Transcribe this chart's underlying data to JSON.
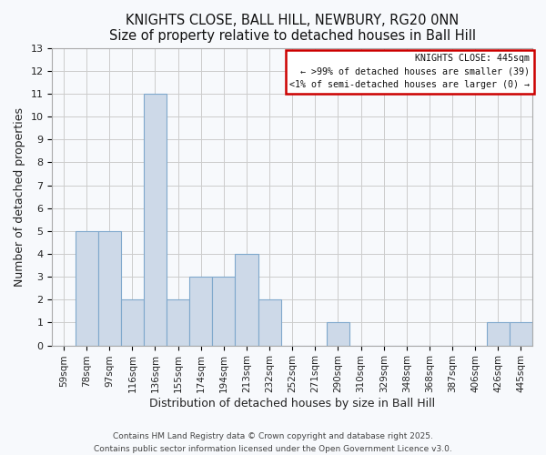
{
  "title": "KNIGHTS CLOSE, BALL HILL, NEWBURY, RG20 0NN",
  "subtitle": "Size of property relative to detached houses in Ball Hill",
  "xlabel": "Distribution of detached houses by size in Ball Hill",
  "ylabel": "Number of detached properties",
  "bar_labels": [
    "59sqm",
    "78sqm",
    "97sqm",
    "116sqm",
    "136sqm",
    "155sqm",
    "174sqm",
    "194sqm",
    "213sqm",
    "232sqm",
    "252sqm",
    "271sqm",
    "290sqm",
    "310sqm",
    "329sqm",
    "348sqm",
    "368sqm",
    "387sqm",
    "406sqm",
    "426sqm",
    "445sqm"
  ],
  "bar_heights": [
    0,
    5,
    5,
    2,
    11,
    2,
    3,
    3,
    4,
    2,
    0,
    0,
    1,
    0,
    0,
    0,
    0,
    0,
    0,
    1,
    1
  ],
  "bar_color": "#cdd9e8",
  "bar_edge_color": "#7fa8cc",
  "legend_title": "KNIGHTS CLOSE: 445sqm",
  "legend_line1": "← >99% of detached houses are smaller (39)",
  "legend_line2": "<1% of semi-detached houses are larger (0) →",
  "legend_box_color": "#ffffff",
  "legend_box_edge_color": "#cc0000",
  "ylim": [
    0,
    13
  ],
  "yticks": [
    0,
    1,
    2,
    3,
    4,
    5,
    6,
    7,
    8,
    9,
    10,
    11,
    12,
    13
  ],
  "grid_color": "#cccccc",
  "background_color": "#f7f9fc",
  "footnote1": "Contains HM Land Registry data © Crown copyright and database right 2025.",
  "footnote2": "Contains public sector information licensed under the Open Government Licence v3.0.",
  "title_fontsize": 10.5,
  "subtitle_fontsize": 9.5,
  "axis_label_fontsize": 9,
  "tick_fontsize": 7.5,
  "footnote_fontsize": 6.5
}
